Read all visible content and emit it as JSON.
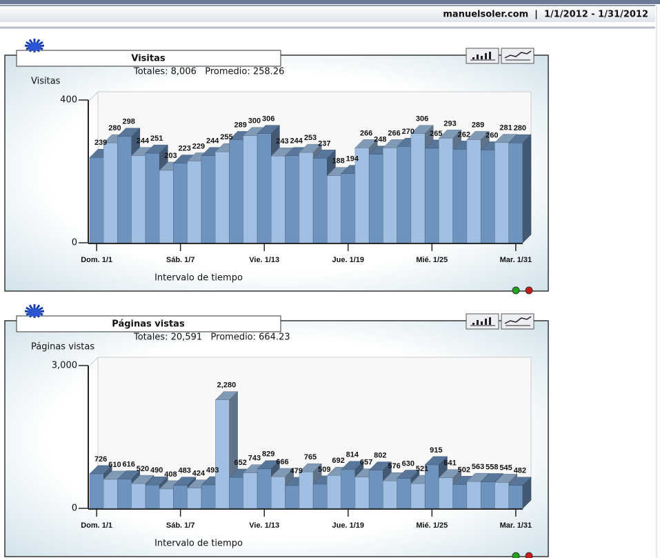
{
  "header": {
    "text": "manuelsoler.com  |  1/1/2012 - 1/31/2012"
  },
  "chart_data": [
    {
      "type": "bar3d",
      "title": "Visitas",
      "subtitle": "Totales: 8,006   Promedio: 258.26",
      "y_label": "Visitas",
      "x_label": "Intervalo de tiempo",
      "categories": [
        "Dom. 1/1",
        null,
        null,
        null,
        null,
        null,
        "Sáb. 1/7",
        null,
        null,
        null,
        null,
        null,
        "Vie. 1/13",
        null,
        null,
        null,
        null,
        null,
        "Jue. 1/19",
        null,
        null,
        null,
        null,
        null,
        "Mié. 1/25",
        null,
        null,
        null,
        null,
        null,
        "Mar. 1/31"
      ],
      "values": [
        239,
        280,
        298,
        244,
        251,
        203,
        223,
        229,
        244,
        255,
        289,
        300,
        306,
        243,
        244,
        253,
        237,
        188,
        194,
        266,
        248,
        266,
        270,
        306,
        265,
        293,
        262,
        289,
        260,
        281,
        280
      ],
      "colors": [
        "#6e93bf",
        "#a0bfe2"
      ],
      "ylim": [
        0,
        400
      ],
      "yticks": [
        0,
        400
      ],
      "grid": true
    },
    {
      "type": "bar3d",
      "title": "Páginas vistas",
      "subtitle": "Totales: 20,591   Promedio: 664.23",
      "y_label": "Páginas vistas",
      "x_label": "Intervalo de tiempo",
      "categories": [
        "Dom. 1/1",
        null,
        null,
        null,
        null,
        null,
        "Sáb. 1/7",
        null,
        null,
        null,
        null,
        null,
        "Vie. 1/13",
        null,
        null,
        null,
        null,
        null,
        "Jue. 1/19",
        null,
        null,
        null,
        null,
        null,
        "Mié. 1/25",
        null,
        null,
        null,
        null,
        null,
        "Mar. 1/31"
      ],
      "values": [
        726,
        610,
        616,
        520,
        490,
        408,
        483,
        424,
        493,
        2280,
        652,
        743,
        829,
        666,
        479,
        765,
        509,
        692,
        814,
        657,
        802,
        576,
        630,
        521,
        915,
        641,
        502,
        563,
        558,
        545,
        482
      ],
      "value_labels": [
        "726",
        "610",
        "616",
        "520",
        "490",
        "408",
        "483",
        "424",
        "493",
        "2,280",
        "652",
        "743",
        "829",
        "666",
        "479",
        "765",
        "509",
        "692",
        "814",
        "657",
        "802",
        "576",
        "630",
        "521",
        "915",
        "641",
        "502",
        "563",
        "558",
        "545",
        "482"
      ],
      "colors": [
        "#6e93bf",
        "#a0bfe2"
      ],
      "ylim": [
        0,
        3000
      ],
      "yticks": [
        0,
        {
          "value": 3000,
          "label": "3,000"
        }
      ],
      "grid": true
    }
  ]
}
